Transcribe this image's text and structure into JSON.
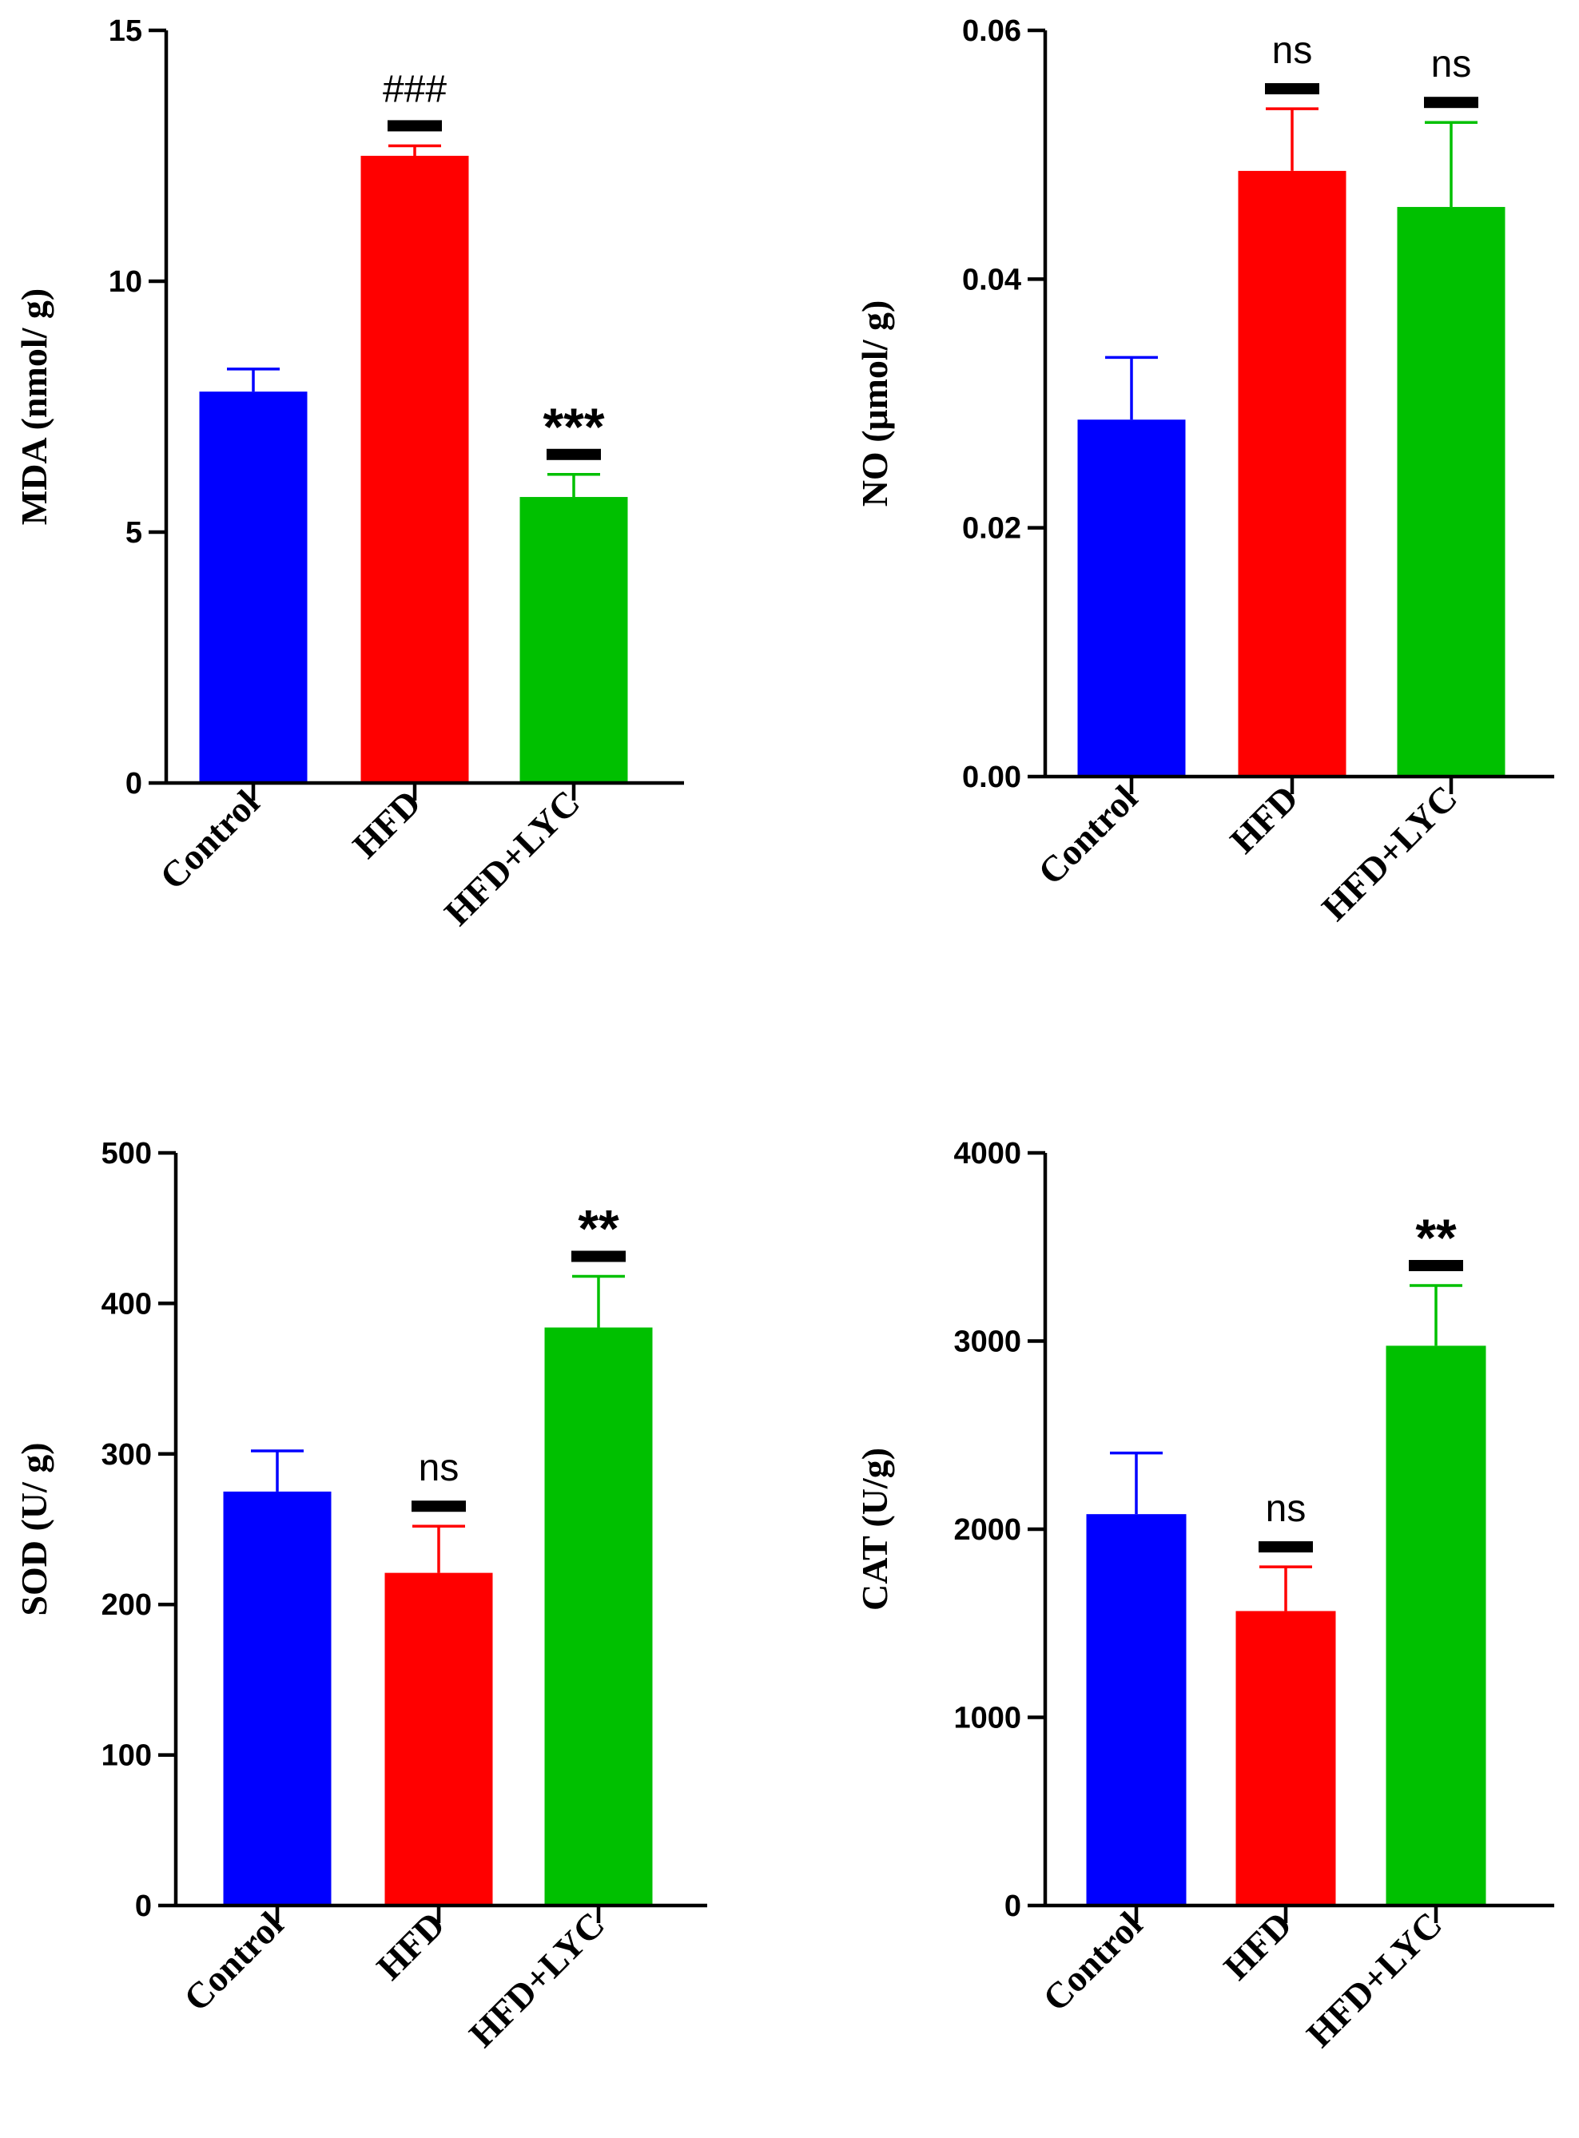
{
  "colors": {
    "control": "#0000ff",
    "hfd": "#ff0000",
    "hfd_lyc": "#00c000",
    "axis": "#000000"
  },
  "chart_data": [
    {
      "type": "bar",
      "panel": "top-left",
      "categories": [
        "Control",
        "HFD",
        "HFD+LYC"
      ],
      "values": [
        7.8,
        12.5,
        5.7
      ],
      "errors": [
        0.45,
        0.2,
        0.45
      ],
      "ylabel": "MDA (nmol/ g)",
      "ylim": [
        0,
        15
      ],
      "yticks": [
        0,
        5,
        10,
        15
      ],
      "ytick_labels": [
        "0",
        "5",
        "10",
        "15"
      ],
      "annotations": [
        "",
        "###",
        "***"
      ]
    },
    {
      "type": "bar",
      "panel": "top-right",
      "categories": [
        "Control",
        "HFD",
        "HFD+LYC"
      ],
      "values": [
        0.0287,
        0.0487,
        0.0458
      ],
      "errors": [
        0.005,
        0.005,
        0.0068
      ],
      "ylabel": "NO (μmol/ g)",
      "ylim": [
        0,
        0.06
      ],
      "yticks": [
        0,
        0.02,
        0.04,
        0.06
      ],
      "ytick_labels": [
        "0.00",
        "0.02",
        "0.04",
        "0.06"
      ],
      "annotations": [
        "",
        "ns",
        "ns"
      ]
    },
    {
      "type": "bar",
      "panel": "bottom-left",
      "categories": [
        "Control",
        "HFD",
        "HFD+LYC"
      ],
      "values": [
        275,
        221,
        384
      ],
      "errors": [
        27,
        31,
        34
      ],
      "ylabel": "SOD (U/ g)",
      "ylim": [
        0,
        500
      ],
      "yticks": [
        0,
        100,
        200,
        300,
        400,
        500
      ],
      "ytick_labels": [
        "0",
        "100",
        "200",
        "300",
        "400",
        "500"
      ],
      "annotations": [
        "",
        "ns",
        "**"
      ]
    },
    {
      "type": "bar",
      "panel": "bottom-right",
      "categories": [
        "Control",
        "HFD",
        "HFD+LYC"
      ],
      "values": [
        2080,
        1565,
        2975
      ],
      "errors": [
        325,
        235,
        320
      ],
      "ylabel": "CAT  (U/g)",
      "ylim": [
        0,
        4000
      ],
      "yticks": [
        0,
        1000,
        2000,
        3000,
        4000
      ],
      "ytick_labels": [
        "0",
        "1000",
        "2000",
        "3000",
        "4000"
      ],
      "annotations": [
        "",
        "ns",
        "**"
      ]
    }
  ]
}
